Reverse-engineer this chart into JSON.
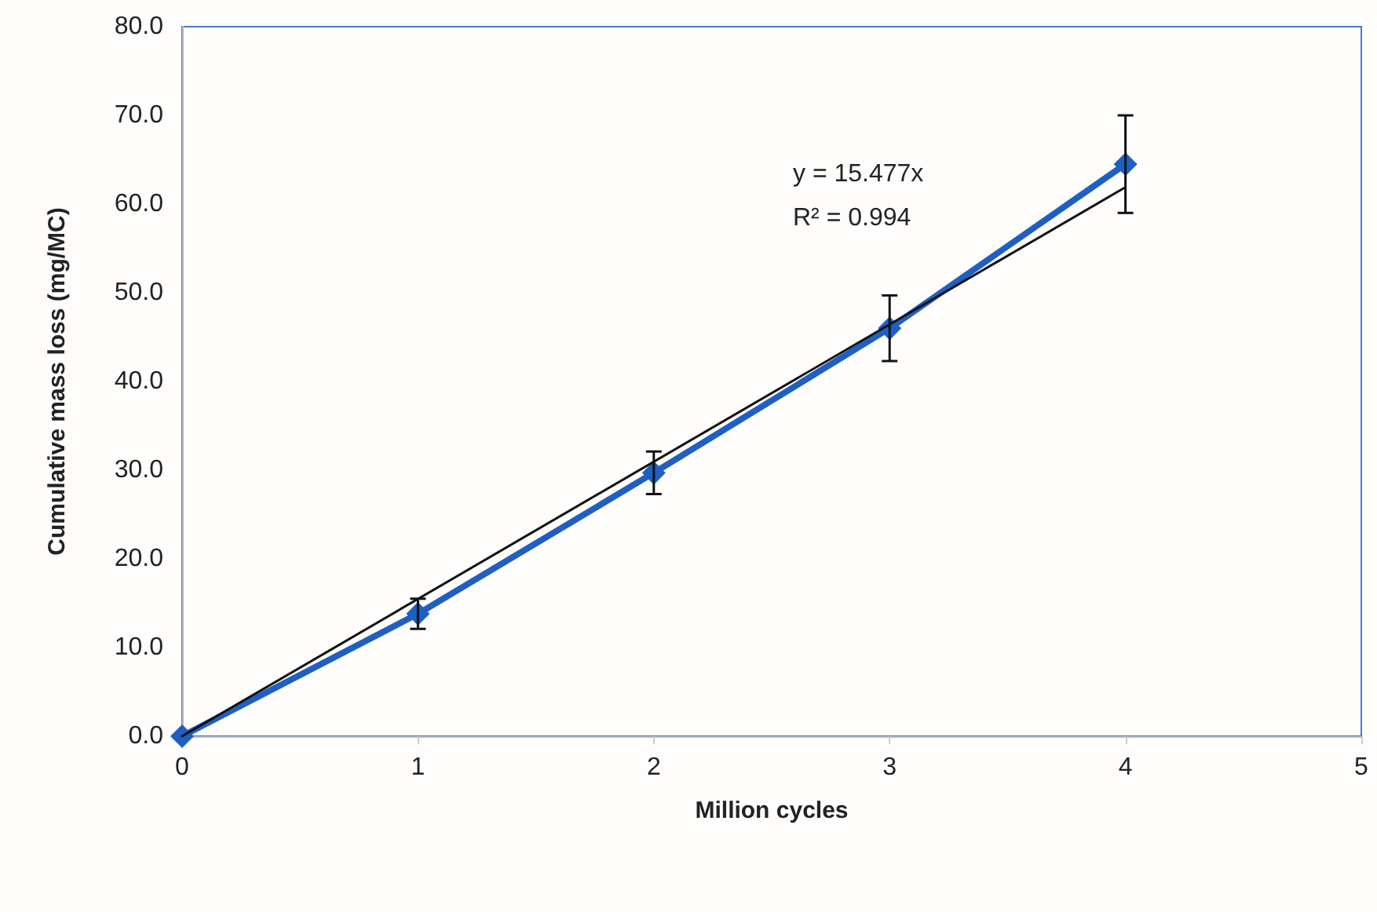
{
  "chart_data": {
    "type": "line",
    "xlabel": "Million cycles",
    "ylabel": "Cumulative mass loss (mg/MC)",
    "xlim": [
      0,
      5
    ],
    "xticks": [
      0,
      1,
      2,
      3,
      4,
      5
    ],
    "ylim": [
      0,
      80
    ],
    "yticks": [
      {
        "value": 0,
        "label": "0.0"
      },
      {
        "value": 10,
        "label": "10.0"
      },
      {
        "value": 20,
        "label": "20.0"
      },
      {
        "value": 30,
        "label": "30.0"
      },
      {
        "value": 40,
        "label": "40.0"
      },
      {
        "value": 50,
        "label": "50.0"
      },
      {
        "value": 60,
        "label": "60.0"
      },
      {
        "value": 70,
        "label": "70.0"
      },
      {
        "value": 80,
        "label": "80.0"
      }
    ],
    "grid": false,
    "series": [
      {
        "color": "#1f5fc4",
        "x": [
          0,
          1,
          2,
          3,
          4
        ],
        "values": [
          0,
          13.8,
          29.7,
          46.0,
          64.5
        ],
        "errors": [
          null,
          1.7,
          2.4,
          3.7,
          5.5
        ],
        "marker": "diamond",
        "line_style": "solid"
      },
      {
        "type": "line",
        "color": "#111111",
        "x": [
          0,
          4
        ],
        "values": [
          0,
          61.9
        ],
        "marker": "none",
        "line_style": "solid"
      }
    ],
    "annotations": [
      "y = 15.477x",
      "R² = 0.994"
    ]
  }
}
